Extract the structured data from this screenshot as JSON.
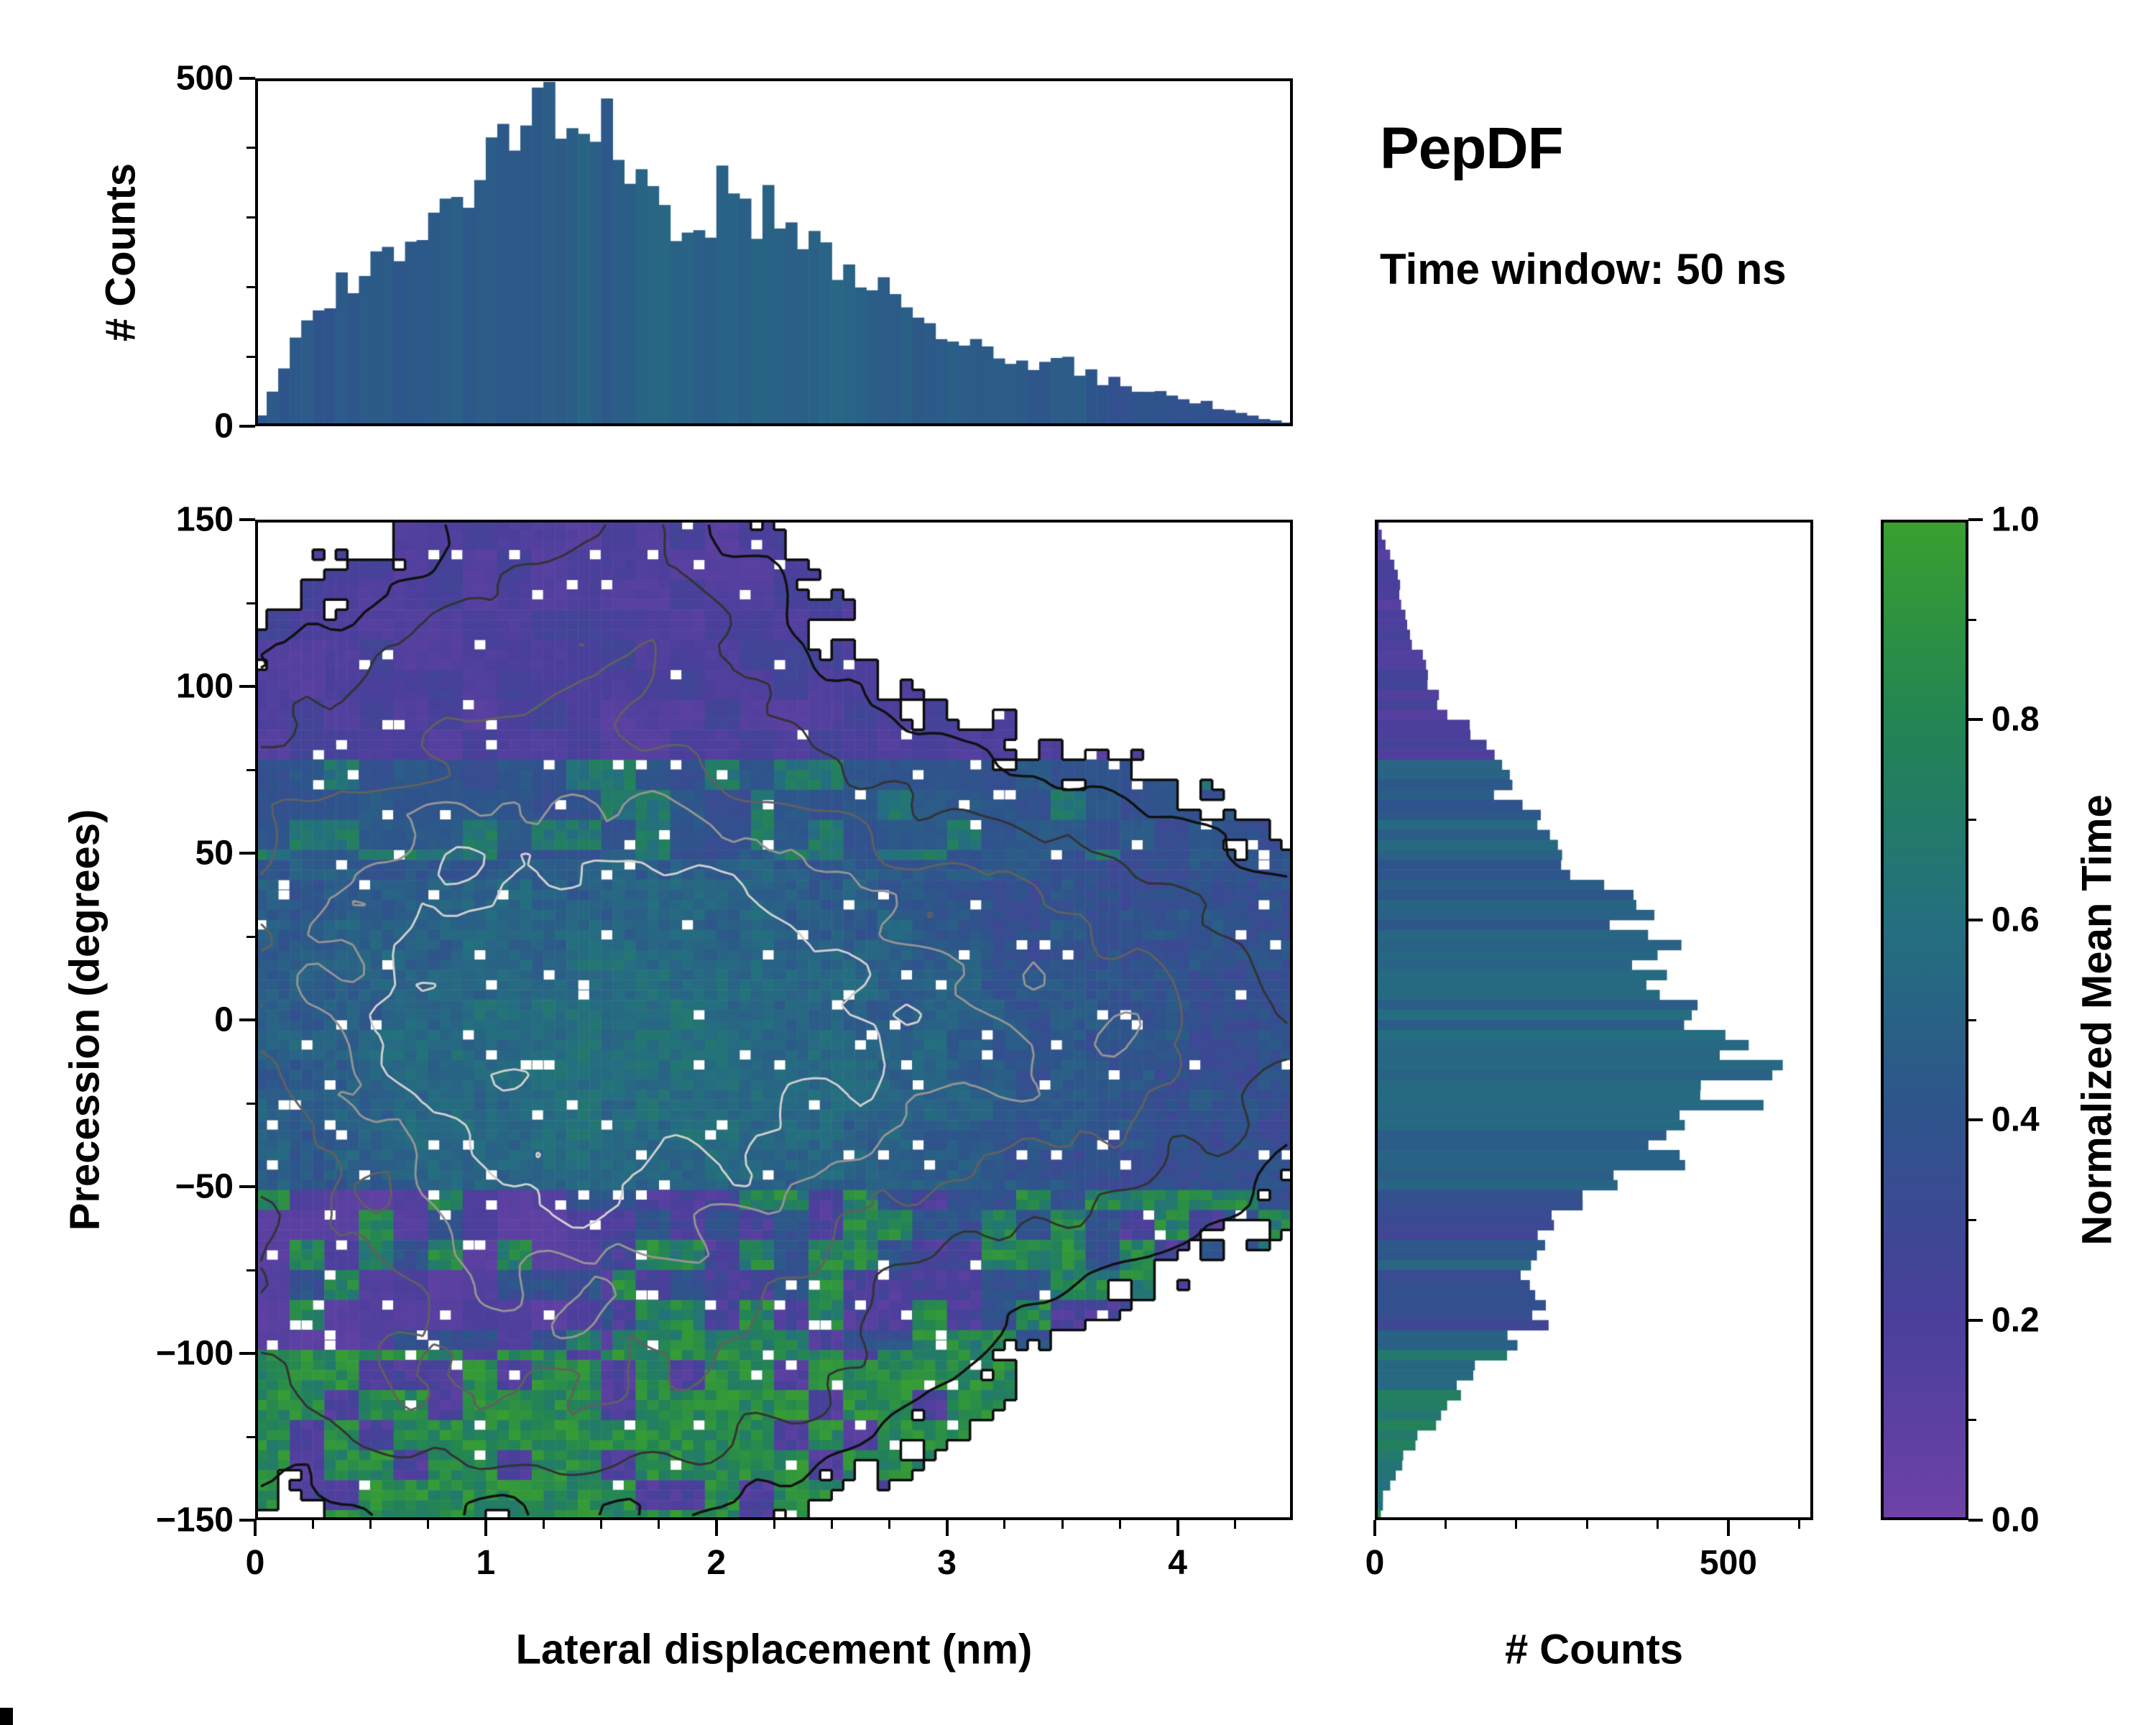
{
  "figure": {
    "title": "PepDF",
    "subtitle": "Time window: 50 ns"
  },
  "chart_data": {
    "type": "heatmap",
    "title": "PepDF",
    "annotation": "Time window: 50 ns",
    "main": {
      "xlabel": "Lateral displacement (nm)",
      "ylabel": "Precession (degrees)",
      "xlim": [
        0,
        4.5
      ],
      "ylim": [
        -150,
        150
      ],
      "xticks": [
        0,
        1,
        2,
        3,
        4
      ],
      "xtick_labels": [
        "0",
        "1",
        "2",
        "3",
        "4"
      ],
      "x_minor_step": 0.25,
      "yticks": [
        -150,
        -100,
        -50,
        0,
        50,
        100,
        150
      ],
      "ytick_labels": [
        "−150",
        "−100",
        "−50",
        "0",
        "50",
        "100",
        "150"
      ],
      "y_minor_step": 25,
      "grid": false,
      "colorby": "Normalized Mean Time"
    },
    "top_hist": {
      "ylabel": "# Counts",
      "ylim": [
        0,
        500
      ],
      "yticks": [
        0,
        500
      ],
      "ytick_labels": [
        "0",
        "500"
      ],
      "y_minor_step": 100,
      "bins": 90,
      "envelope": [
        [
          0.02,
          10
        ],
        [
          0.08,
          55
        ],
        [
          0.15,
          110
        ],
        [
          0.25,
          150
        ],
        [
          0.35,
          185
        ],
        [
          0.45,
          215
        ],
        [
          0.55,
          245
        ],
        [
          0.65,
          280
        ],
        [
          0.75,
          320
        ],
        [
          0.85,
          345
        ],
        [
          0.95,
          375
        ],
        [
          1.05,
          410
        ],
        [
          1.15,
          425
        ],
        [
          1.25,
          450
        ],
        [
          1.32,
          462
        ],
        [
          1.4,
          435
        ],
        [
          1.5,
          425
        ],
        [
          1.58,
          380
        ],
        [
          1.65,
          345
        ],
        [
          1.75,
          322
        ],
        [
          1.85,
          308
        ],
        [
          1.95,
          315
        ],
        [
          2.05,
          330
        ],
        [
          2.15,
          312
        ],
        [
          2.25,
          298
        ],
        [
          2.35,
          288
        ],
        [
          2.45,
          262
        ],
        [
          2.55,
          240
        ],
        [
          2.65,
          212
        ],
        [
          2.75,
          178
        ],
        [
          2.85,
          160
        ],
        [
          2.95,
          148
        ],
        [
          3.05,
          128
        ],
        [
          3.15,
          112
        ],
        [
          3.25,
          100
        ],
        [
          3.35,
          92
        ],
        [
          3.45,
          98
        ],
        [
          3.55,
          85
        ],
        [
          3.65,
          72
        ],
        [
          3.75,
          62
        ],
        [
          3.85,
          55
        ],
        [
          3.95,
          48
        ],
        [
          4.05,
          38
        ],
        [
          4.15,
          30
        ],
        [
          4.25,
          20
        ],
        [
          4.35,
          12
        ],
        [
          4.45,
          6
        ]
      ]
    },
    "right_hist": {
      "xlabel": "# Counts",
      "xlim": [
        0,
        620
      ],
      "xticks": [
        0,
        500
      ],
      "xtick_labels": [
        "0",
        "500"
      ],
      "x_minor_step": 100,
      "bins": 100,
      "envelope": [
        [
          148,
          6
        ],
        [
          140,
          22
        ],
        [
          132,
          32
        ],
        [
          124,
          40
        ],
        [
          116,
          52
        ],
        [
          108,
          66
        ],
        [
          100,
          82
        ],
        [
          92,
          104
        ],
        [
          84,
          136
        ],
        [
          76,
          168
        ],
        [
          68,
          196
        ],
        [
          60,
          218
        ],
        [
          52,
          246
        ],
        [
          44,
          286
        ],
        [
          36,
          330
        ],
        [
          28,
          362
        ],
        [
          20,
          396
        ],
        [
          12,
          428
        ],
        [
          4,
          448
        ],
        [
          -2,
          462
        ],
        [
          -8,
          556
        ],
        [
          -12,
          512
        ],
        [
          -18,
          486
        ],
        [
          -24,
          528
        ],
        [
          -30,
          452
        ],
        [
          -36,
          428
        ],
        [
          -42,
          412
        ],
        [
          -48,
          342
        ],
        [
          -54,
          282
        ],
        [
          -60,
          238
        ],
        [
          -66,
          212
        ],
        [
          -72,
          204
        ],
        [
          -78,
          216
        ],
        [
          -84,
          228
        ],
        [
          -90,
          238
        ],
        [
          -96,
          208
        ],
        [
          -102,
          170
        ],
        [
          -108,
          136
        ],
        [
          -114,
          108
        ],
        [
          -120,
          82
        ],
        [
          -126,
          58
        ],
        [
          -132,
          38
        ],
        [
          -138,
          22
        ],
        [
          -144,
          10
        ]
      ]
    },
    "colorbar": {
      "label": "Normalized Mean Time",
      "tick_values": [
        0,
        0.2,
        0.4,
        0.6,
        0.8,
        1.0
      ],
      "tick_labels": [
        "0.0",
        "0.2",
        "0.4",
        "0.6",
        "0.8",
        "1.0"
      ],
      "minor_step": 0.1,
      "range": [
        0,
        1
      ],
      "stops": [
        [
          0,
          "#6f42a8"
        ],
        [
          0.2,
          "#4a3f9b"
        ],
        [
          0.4,
          "#2f538c"
        ],
        [
          0.6,
          "#24707f"
        ],
        [
          0.8,
          "#238553"
        ],
        [
          1,
          "#3aa02f"
        ]
      ]
    },
    "heatmap_model": {
      "seed": 1337,
      "grid": {
        "nx": 90,
        "ny": 100
      },
      "mask_threshold": 0.055,
      "speckle_prob": 0.03,
      "gaussians": [
        {
          "a": 1.0,
          "mx": 1.4,
          "my": -5,
          "sx": 0.85,
          "sy": 48
        },
        {
          "a": 0.55,
          "mx": 2.3,
          "my": 0,
          "sx": 1.0,
          "sy": 40
        },
        {
          "a": 0.33,
          "mx": 3.7,
          "my": -5,
          "sx": 0.55,
          "sy": 33
        },
        {
          "a": 0.3,
          "mx": 1.5,
          "my": 112,
          "sx": 0.5,
          "sy": 34
        },
        {
          "a": 0.36,
          "mx": 1.2,
          "my": -103,
          "sx": 0.95,
          "sy": 26
        },
        {
          "a": 0.25,
          "mx": 0.45,
          "my": 50,
          "sx": 0.5,
          "sy": 42
        }
      ],
      "contour_levels": [
        0.09,
        0.2,
        0.38,
        0.6,
        0.85
      ],
      "contour_colors": [
        "#111111",
        "#333333",
        "#606060",
        "#949494",
        "#cfcfcf"
      ],
      "contour_widths": [
        3.5,
        3,
        3,
        3,
        3
      ],
      "outline_color": "#0d0d0d",
      "outline_width": 3.5
    }
  }
}
